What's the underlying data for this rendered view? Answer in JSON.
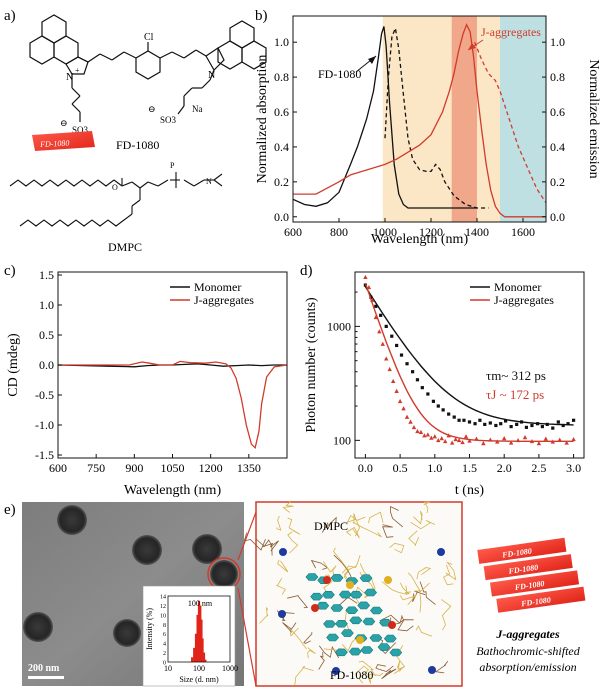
{
  "panels": {
    "a": {
      "letter": "a)",
      "molecule1_name": "FD-1080",
      "molecule2_name": "DMPC",
      "badge_text": "FD-1080",
      "atoms": {
        "cl": "Cl",
        "n_plus": "N",
        "plus": "+",
        "so3_left": "SO3",
        "so3_right": "SO3",
        "minus": "⊖",
        "na": "Na",
        "n_right": "N"
      }
    },
    "b": {
      "letter": "b)"
    },
    "c": {
      "letter": "c)"
    },
    "d": {
      "letter": "d)"
    },
    "e": {
      "letter": "e)",
      "scale_bar": "200 nm",
      "inset_title": "100 nm",
      "inset_ylabel": "Intensity (%)",
      "inset_xlabel": "Size (d. nm)",
      "inset_xticks": [
        "10",
        "100",
        "1000"
      ],
      "inset_yticks": [
        "0",
        "2",
        "4",
        "6",
        "8",
        "10",
        "12",
        "14"
      ],
      "md_label_top": "DMPC",
      "md_label_bottom": "FD-1080",
      "stack_labels": [
        "FD-1080",
        "FD-1080",
        "FD-1080",
        "FD-1080"
      ],
      "jagg_title": "J-aggregates",
      "jagg_sub1": "Bathochromic-shifted",
      "jagg_sub2": "absorption/emission"
    }
  },
  "chart_data": [
    {
      "id": "b",
      "type": "line",
      "xlabel": "Wavelength (nm)",
      "ylabel": "Normalized absorption",
      "y2label": "Normalized emission",
      "xlim": [
        600,
        1700
      ],
      "ylim": [
        -0.03,
        1.15
      ],
      "xticks": [
        600,
        800,
        1000,
        1200,
        1400,
        1600
      ],
      "yticks": [
        0.0,
        0.2,
        0.4,
        0.6,
        0.8,
        1.0
      ],
      "ytick_labels": [
        "0.0",
        "0.2",
        "0.4",
        "0.6",
        "0.8",
        "1.0"
      ],
      "annotations": [
        "FD-1080",
        "J-aggregates"
      ],
      "bands": [
        {
          "from": 990,
          "to": 1500,
          "color": "#fbe6c6"
        },
        {
          "from": 1290,
          "to": 1400,
          "color": "#f0a78a"
        },
        {
          "from": 1500,
          "to": 1700,
          "color": "#bfe0e2"
        }
      ],
      "series": [
        {
          "name": "FD-1080 absorption",
          "color": "#111111",
          "style": "solid",
          "x": [
            600,
            650,
            700,
            750,
            800,
            850,
            880,
            900,
            920,
            950,
            970,
            985,
            995,
            1005,
            1020,
            1040,
            1060,
            1080,
            1100,
            1150,
            1200,
            1300,
            1400
          ],
          "y": [
            0.1,
            0.07,
            0.06,
            0.08,
            0.14,
            0.3,
            0.4,
            0.48,
            0.56,
            0.72,
            0.9,
            1.05,
            1.09,
            0.98,
            0.65,
            0.3,
            0.13,
            0.07,
            0.05,
            0.05,
            0.05,
            0.05,
            0.05
          ]
        },
        {
          "name": "FD-1080 emission",
          "color": "#111111",
          "style": "dashed",
          "x": [
            1000,
            1015,
            1030,
            1045,
            1060,
            1080,
            1100,
            1120,
            1150,
            1180,
            1200,
            1220,
            1240,
            1260,
            1300,
            1350,
            1400,
            1450
          ],
          "y": [
            0.45,
            0.8,
            1.03,
            1.08,
            0.96,
            0.7,
            0.45,
            0.33,
            0.27,
            0.26,
            0.26,
            0.3,
            0.27,
            0.2,
            0.12,
            0.07,
            0.05,
            0.05
          ]
        },
        {
          "name": "J-aggregates absorption",
          "color": "#d13b2d",
          "style": "solid",
          "x": [
            600,
            700,
            800,
            850,
            900,
            1000,
            1050,
            1100,
            1150,
            1200,
            1250,
            1280,
            1300,
            1320,
            1340,
            1355,
            1370,
            1385,
            1400,
            1420,
            1440,
            1460,
            1480,
            1500,
            1520,
            1550,
            1600,
            1700
          ],
          "y": [
            0.13,
            0.13,
            0.2,
            0.24,
            0.26,
            0.3,
            0.33,
            0.37,
            0.41,
            0.47,
            0.6,
            0.72,
            0.82,
            0.95,
            1.05,
            1.1,
            1.06,
            0.92,
            0.72,
            0.5,
            0.3,
            0.15,
            0.06,
            0.02,
            0.0,
            0.0,
            0.0,
            0.0
          ]
        },
        {
          "name": "J-aggregates emission",
          "color": "#d13b2d",
          "style": "dashed",
          "x": [
            1390,
            1420,
            1450,
            1480,
            1500,
            1520,
            1540,
            1560,
            1580,
            1600,
            1620,
            1640,
            1660,
            1680,
            1700
          ],
          "y": [
            1.0,
            0.9,
            0.82,
            0.78,
            0.72,
            0.64,
            0.56,
            0.48,
            0.4,
            0.34,
            0.28,
            0.22,
            0.16,
            0.12,
            0.08
          ]
        }
      ]
    },
    {
      "id": "c",
      "type": "line",
      "xlabel": "Wavelength (nm)",
      "ylabel": "CD (mdeg)",
      "xlim": [
        600,
        1500
      ],
      "ylim": [
        -1.55,
        1.55
      ],
      "xticks": [
        600,
        750,
        900,
        1050,
        1200,
        1350
      ],
      "yticks": [
        1.5,
        1.0,
        0.5,
        0.0,
        -0.5,
        -1.0,
        -1.5
      ],
      "ytick_labels": [
        "1.5",
        "1.0",
        "0.5",
        "0.0",
        "-0.5",
        "-1.0",
        "-1.5"
      ],
      "legend": [
        "Monomer",
        "J-aggregates"
      ],
      "series": [
        {
          "name": "Monomer",
          "color": "#111111",
          "x": [
            600,
            700,
            800,
            900,
            950,
            1000,
            1050,
            1100,
            1150,
            1200,
            1250,
            1300,
            1350,
            1400,
            1450,
            1500
          ],
          "y": [
            0.0,
            -0.01,
            -0.02,
            -0.03,
            -0.01,
            0.0,
            0.0,
            0.01,
            0.02,
            0.0,
            -0.02,
            -0.01,
            0.0,
            -0.01,
            0.0,
            0.0
          ]
        },
        {
          "name": "J-aggregates",
          "color": "#d13b2d",
          "x": [
            600,
            700,
            800,
            880,
            930,
            960,
            1000,
            1050,
            1080,
            1120,
            1180,
            1220,
            1260,
            1280,
            1300,
            1320,
            1340,
            1360,
            1375,
            1390,
            1400,
            1420,
            1450,
            1500
          ],
          "y": [
            0.0,
            0.0,
            0.0,
            0.0,
            0.05,
            0.03,
            0.0,
            0.0,
            0.06,
            0.04,
            0.03,
            0.05,
            0.02,
            -0.05,
            -0.22,
            -0.55,
            -1.0,
            -1.32,
            -1.38,
            -1.1,
            -0.65,
            -0.2,
            -0.03,
            0.0
          ]
        }
      ]
    },
    {
      "id": "d",
      "type": "scatter",
      "xlabel": "t (ns)",
      "ylabel": "Photon number (counts)",
      "yscale": "log",
      "xlim": [
        -0.15,
        3.15
      ],
      "ylim": [
        70,
        3000
      ],
      "xticks": [
        0.0,
        0.5,
        1.0,
        1.5,
        2.0,
        2.5,
        3.0
      ],
      "xtick_labels": [
        "0.0",
        "0.5",
        "1.0",
        "1.5",
        "2.0",
        "2.5",
        "3.0"
      ],
      "yticks": [
        100,
        1000
      ],
      "ytick_labels": [
        "100",
        "1000"
      ],
      "legend": [
        "Monomer",
        "J-aggregates"
      ],
      "annotations": [
        {
          "text": "τm~ 312 ps",
          "color": "#111111"
        },
        {
          "text": "τJ ~ 172 ps",
          "color": "#d13b2d"
        }
      ],
      "series": [
        {
          "name": "Monomer",
          "color": "#111111",
          "marker": "square",
          "fit": {
            "a": 2100,
            "tau": 0.312,
            "c": 135
          },
          "x": [
            0.0,
            0.08,
            0.15,
            0.22,
            0.3,
            0.38,
            0.45,
            0.52,
            0.6,
            0.68,
            0.75,
            0.82,
            0.9,
            0.98,
            1.05,
            1.12,
            1.2,
            1.28,
            1.35,
            1.42,
            1.5,
            1.58,
            1.65,
            1.72,
            1.8,
            1.88,
            1.95,
            2.02,
            2.1,
            2.18,
            2.25,
            2.32,
            2.4,
            2.48,
            2.55,
            2.62,
            2.7,
            2.78,
            2.85,
            2.92,
            3.0
          ],
          "y": [
            2300,
            1800,
            1500,
            1250,
            1000,
            820,
            680,
            560,
            470,
            400,
            340,
            290,
            255,
            220,
            200,
            185,
            170,
            160,
            150,
            150,
            145,
            140,
            150,
            138,
            142,
            135,
            140,
            148,
            132,
            138,
            145,
            130,
            135,
            140,
            132,
            138,
            128,
            145,
            135,
            140,
            150
          ]
        },
        {
          "name": "J-aggregates",
          "color": "#d13b2d",
          "marker": "triangle",
          "fit": {
            "a": 2300,
            "tau": 0.172,
            "c": 98
          },
          "x": [
            0.0,
            0.05,
            0.1,
            0.15,
            0.2,
            0.25,
            0.3,
            0.35,
            0.4,
            0.45,
            0.5,
            0.55,
            0.6,
            0.65,
            0.7,
            0.75,
            0.8,
            0.85,
            0.9,
            0.95,
            1.0,
            1.05,
            1.1,
            1.15,
            1.2,
            1.25,
            1.3,
            1.35,
            1.4,
            1.45,
            1.5,
            1.6,
            1.7,
            1.8,
            1.9,
            2.0,
            2.1,
            2.2,
            2.3,
            2.4,
            2.5,
            2.6,
            2.7,
            2.8,
            2.9,
            3.0
          ],
          "y": [
            2700,
            2200,
            1700,
            1200,
            900,
            700,
            520,
            420,
            330,
            270,
            220,
            190,
            160,
            145,
            130,
            120,
            118,
            110,
            112,
            105,
            108,
            100,
            104,
            98,
            110,
            95,
            102,
            100,
            96,
            108,
            99,
            103,
            94,
            101,
            97,
            104,
            95,
            100,
            106,
            98,
            94,
            103,
            97,
            101,
            95,
            102
          ]
        }
      ]
    },
    {
      "id": "e-inset",
      "type": "bar",
      "xlabel": "Size (d. nm)",
      "ylabel": "Intensity (%)",
      "xscale": "log",
      "xlim": [
        10,
        1000
      ],
      "ylim": [
        0,
        14
      ],
      "categories": [
        60,
        70,
        80,
        90,
        100,
        110,
        120,
        130,
        145,
        160
      ],
      "values": [
        1,
        3,
        6,
        10,
        13,
        12,
        9,
        5,
        2,
        0.5
      ]
    }
  ]
}
